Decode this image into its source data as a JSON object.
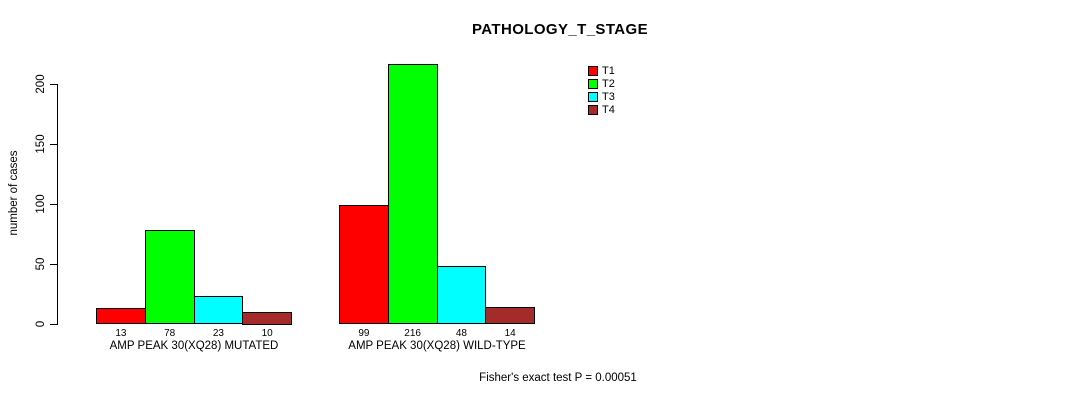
{
  "chart_data": {
    "type": "bar",
    "title": "PATHOLOGY_T_STAGE",
    "ylabel": "number of cases",
    "xlabel": "",
    "ylim": [
      0,
      220
    ],
    "yticks": [
      0,
      50,
      100,
      150,
      200
    ],
    "grid": false,
    "legend_position": "top-right",
    "series": [
      {
        "name": "T1",
        "color": "#ff0000"
      },
      {
        "name": "T2",
        "color": "#00ff00"
      },
      {
        "name": "T3",
        "color": "#00ffff"
      },
      {
        "name": "T4",
        "color": "#a52a2a"
      }
    ],
    "groups": [
      {
        "label": "AMP PEAK 30(XQ28) MUTATED",
        "values": [
          13,
          78,
          23,
          10
        ]
      },
      {
        "label": "AMP PEAK 30(XQ28) WILD-TYPE",
        "values": [
          99,
          216,
          48,
          14
        ]
      }
    ],
    "bar_value_labels": [
      [
        "13",
        "78",
        "23",
        "10"
      ],
      [
        "99",
        "216",
        "48",
        "14"
      ]
    ],
    "footer": "Fisher's exact test P = 0.00051"
  }
}
